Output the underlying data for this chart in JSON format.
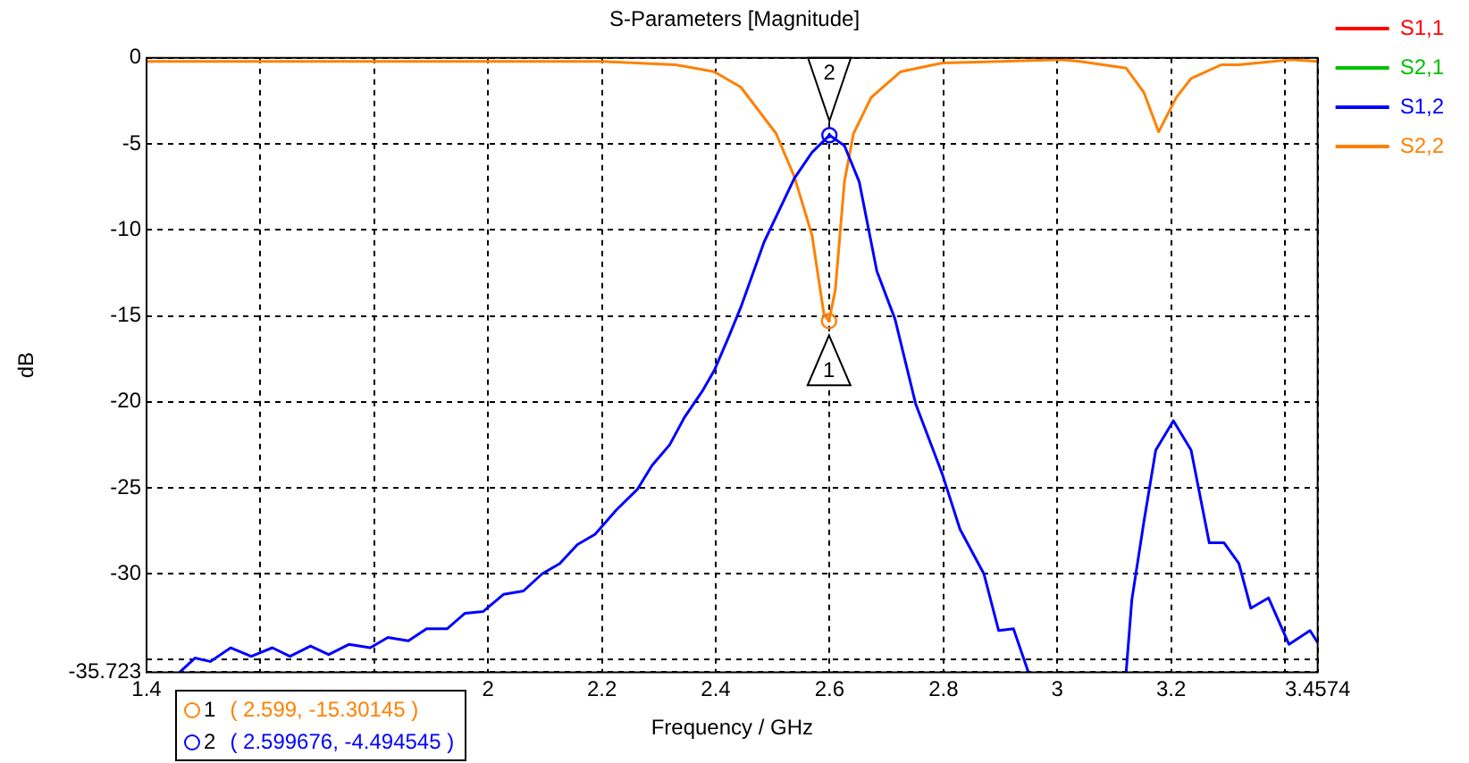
{
  "chart_data": {
    "type": "line",
    "title": "S-Parameters [Magnitude]",
    "xlabel": "Frequency / GHz",
    "ylabel": "dB",
    "xlim": [
      1.4,
      3.4574
    ],
    "xticks": [
      1.4,
      {
        "value": 1.6,
        "label": null
      },
      {
        "value": 1.8,
        "label": null
      },
      2,
      2.2,
      2.4,
      2.6,
      2.8,
      3,
      3.2,
      {
        "value": 3.4,
        "label": null
      },
      3.4574
    ],
    "ylim": [
      -35.723,
      0
    ],
    "yticks": [
      0,
      -5,
      -10,
      -15,
      -20,
      -25,
      -30,
      {
        "value": -35,
        "label": null
      },
      -35.723
    ],
    "grid": true,
    "legend": "top right",
    "line_style": "solid",
    "marker": "none",
    "series": [
      {
        "name": "S1,1",
        "color": "#ff0000"
      },
      {
        "name": "S2,1",
        "color": "#00c000"
      },
      {
        "name": "S1,2",
        "color": "#0000ff",
        "x": [
          1.459,
          1.485,
          1.512,
          1.548,
          1.584,
          1.621,
          1.652,
          1.688,
          1.72,
          1.756,
          1.793,
          1.824,
          1.86,
          1.892,
          1.928,
          1.959,
          1.991,
          2.027,
          2.062,
          2.095,
          2.126,
          2.157,
          2.188,
          2.225,
          2.262,
          2.288,
          2.319,
          2.345,
          2.376,
          2.397,
          2.423,
          2.444,
          2.485,
          2.538,
          2.569,
          2.599676,
          2.626,
          2.652,
          2.683,
          2.715,
          2.751,
          2.798,
          2.829,
          2.871,
          2.897,
          2.923,
          2.949,
          3.03,
          3.121,
          3.131,
          3.152,
          3.173,
          3.204,
          3.235,
          3.267,
          3.293,
          3.319,
          3.34,
          3.371,
          3.407,
          3.444,
          3.4574
        ],
        "values": [
          -35.7,
          -34.9,
          -35.1,
          -34.3,
          -34.8,
          -34.3,
          -34.8,
          -34.2,
          -34.7,
          -34.1,
          -34.3,
          -33.7,
          -33.9,
          -33.2,
          -33.2,
          -32.3,
          -32.2,
          -31.2,
          -31.0,
          -30.0,
          -29.4,
          -28.3,
          -27.7,
          -26.3,
          -25.1,
          -23.7,
          -22.5,
          -20.9,
          -19.4,
          -18.2,
          -16.2,
          -14.5,
          -10.7,
          -7.0,
          -5.5,
          -4.494545,
          -5.1,
          -7.2,
          -12.4,
          -15.2,
          -20.1,
          -24.2,
          -27.4,
          -30.0,
          -33.3,
          -33.2,
          -35.7,
          null,
          -35.7,
          -31.5,
          -27.0,
          -22.8,
          -21.1,
          -22.8,
          -28.2,
          -28.2,
          -29.4,
          -32.0,
          -31.4,
          -34.1,
          -33.3,
          -34.0
        ]
      },
      {
        "name": "S2,2",
        "color": "#ff8000",
        "x": [
          1.4,
          2.0,
          2.2,
          2.329,
          2.397,
          2.444,
          2.506,
          2.538,
          2.569,
          2.59,
          2.599,
          2.61,
          2.626,
          2.642,
          2.673,
          2.725,
          2.798,
          2.9,
          3.006,
          3.04,
          3.121,
          3.152,
          3.178,
          3.209,
          3.235,
          3.288,
          3.319,
          3.41,
          3.4574
        ],
        "values": [
          -0.2,
          -0.2,
          -0.2,
          -0.4,
          -0.8,
          -1.7,
          -4.4,
          -6.9,
          -10.3,
          -14.9,
          -15.30145,
          -13.5,
          -7.2,
          -4.4,
          -2.3,
          -0.8,
          -0.3,
          -0.2,
          -0.1,
          -0.2,
          -0.6,
          -2.0,
          -4.3,
          -2.3,
          -1.2,
          -0.4,
          -0.4,
          -0.1,
          -0.2
        ]
      }
    ],
    "annotations": [
      {
        "text": "1",
        "x": 2.599,
        "y": -15.30145
      },
      {
        "text": "2",
        "x": 2.599676,
        "y": -4.494545
      },
      "( 2.599, -15.30145 )",
      "( 2.599676, -4.494545 )"
    ]
  }
}
